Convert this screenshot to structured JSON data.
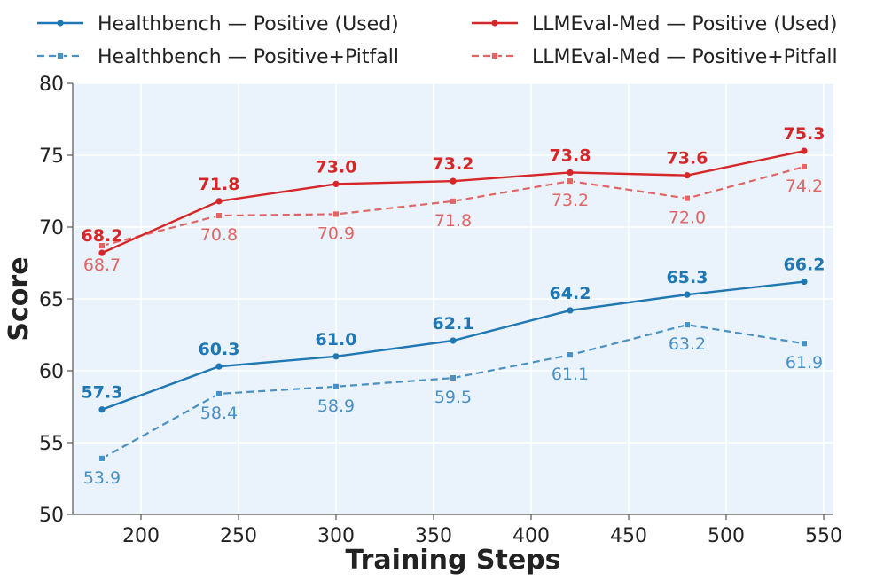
{
  "chart_data": {
    "type": "line",
    "title": "",
    "xlabel": "Training Steps",
    "ylabel": "Score",
    "xlim": [
      165,
      555
    ],
    "ylim": [
      50,
      80
    ],
    "xticks": [
      200,
      250,
      300,
      350,
      400,
      450,
      500,
      550
    ],
    "yticks": [
      50,
      55,
      60,
      65,
      70,
      75,
      80
    ],
    "grid": true,
    "legend_position": "top",
    "x": [
      180,
      240,
      300,
      360,
      420,
      480,
      540
    ],
    "series": [
      {
        "name": "Healthbench — Positive (Used)",
        "color": "#1f77b4",
        "style": "solid",
        "marker": "circle",
        "label_weight": "bold",
        "values": [
          57.3,
          60.3,
          61.0,
          62.1,
          64.2,
          65.3,
          66.2
        ],
        "labels": [
          "57.3",
          "60.3",
          "61.0",
          "62.1",
          "64.2",
          "65.3",
          "66.2"
        ],
        "label_side": [
          "above",
          "above",
          "above",
          "above",
          "above",
          "above",
          "above"
        ]
      },
      {
        "name": "Healthbench — Positive+Pitfall",
        "color": "#4a90c2",
        "style": "dashed",
        "marker": "square",
        "label_weight": "normal",
        "values": [
          53.9,
          58.4,
          58.9,
          59.5,
          61.1,
          63.2,
          61.9
        ],
        "labels": [
          "53.9",
          "58.4",
          "58.9",
          "59.5",
          "61.1",
          "63.2",
          "61.9"
        ],
        "label_side": [
          "below",
          "below",
          "below",
          "below",
          "below",
          "below",
          "below"
        ]
      },
      {
        "name": "LLMEval-Med — Positive (Used)",
        "color": "#d62728",
        "style": "solid",
        "marker": "circle",
        "label_weight": "bold",
        "values": [
          68.2,
          71.8,
          73.0,
          73.2,
          73.8,
          73.6,
          75.3
        ],
        "labels": [
          "68.2",
          "71.8",
          "73.0",
          "73.2",
          "73.8",
          "73.6",
          "75.3"
        ],
        "label_side": [
          "above",
          "above",
          "above",
          "above",
          "above",
          "above",
          "above"
        ]
      },
      {
        "name": "LLMEval-Med — Positive+Pitfall",
        "color": "#e06666",
        "style": "dashed",
        "marker": "square",
        "label_weight": "normal",
        "values": [
          68.7,
          70.8,
          70.9,
          71.8,
          73.2,
          72.0,
          74.2
        ],
        "labels": [
          "68.7",
          "70.8",
          "70.9",
          "71.8",
          "73.2",
          "72.0",
          "74.2"
        ],
        "label_side": [
          "below",
          "below",
          "below",
          "below",
          "below",
          "below",
          "below"
        ]
      }
    ]
  }
}
